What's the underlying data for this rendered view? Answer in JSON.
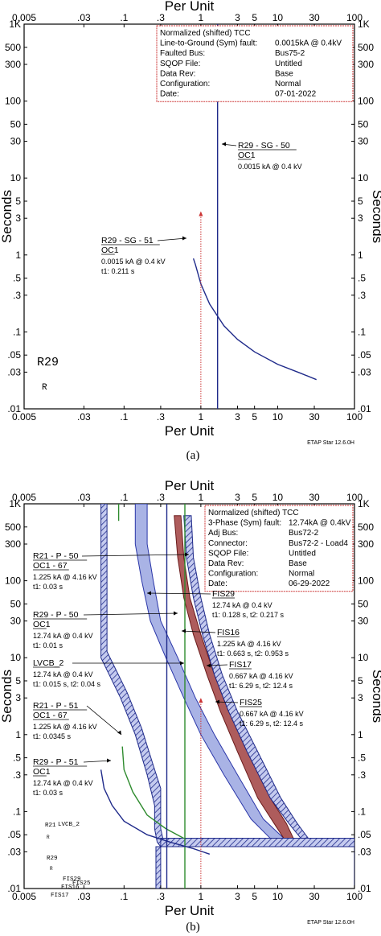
{
  "figure": {
    "panel_a_caption": "(a)",
    "panel_b_caption": "(b)"
  },
  "chart_data": [
    {
      "type": "line",
      "x_scale": "log",
      "y_scale": "log",
      "xlim": [
        0.005,
        100
      ],
      "ylim": [
        0.01,
        1000
      ],
      "xlabel": "Per Unit",
      "ylabel": "Seconds",
      "x_ticks": [
        "0.005",
        ".03",
        ".1",
        ".3",
        "1",
        "3",
        "5",
        "10",
        "30",
        "100"
      ],
      "x_tick_values": [
        0.005,
        0.03,
        0.1,
        0.3,
        1,
        3,
        5,
        10,
        30,
        100
      ],
      "y_ticks": [
        "1K",
        "500",
        "300",
        "100",
        "50",
        "30",
        "10",
        "5",
        "3",
        "1",
        ".5",
        ".3",
        ".1",
        ".05",
        ".03",
        ".01"
      ],
      "y_tick_values": [
        1000,
        500,
        300,
        100,
        50,
        30,
        10,
        5,
        3,
        1,
        0.5,
        0.3,
        0.1,
        0.05,
        0.03,
        0.01
      ],
      "watermark": "ETAP Star 12.6.0H",
      "info_box": [
        [
          "Normalized (shifted) TCC",
          ""
        ],
        [
          "Line-to-Ground (Sym)  fault:",
          "0.0015kA @ 0.4kV"
        ],
        [
          "Faulted  Bus:",
          "Bus75-2"
        ],
        [
          "SQOP  File:",
          "Untitled"
        ],
        [
          "Data  Rev:",
          "Base"
        ],
        [
          "Configuration:",
          "Normal"
        ],
        [
          "Date:",
          "07-01-2022"
        ]
      ],
      "series": [
        {
          "color": "#1f2a8a",
          "points": [
            [
              0.8,
              0.9
            ],
            [
              0.85,
              0.75
            ],
            [
              1.0,
              0.42
            ],
            [
              1.3,
              0.23
            ],
            [
              2,
              0.12
            ],
            [
              3,
              0.08
            ],
            [
              5,
              0.055
            ],
            [
              10,
              0.038
            ],
            [
              20,
              0.029
            ],
            [
              32,
              0.024
            ]
          ]
        },
        {
          "color": "#1f2a8a",
          "points": [
            [
              1.65,
              0.01
            ],
            [
              1.65,
              1000
            ]
          ]
        }
      ],
      "markers": [
        {
          "x": 1.0,
          "y_from": 0.01,
          "y_to": 3.7,
          "color": "#cc3333",
          "style": "dotted-arrow"
        }
      ],
      "annotations": [
        {
          "title": "R29 - SG - 50",
          "sub": "OC1",
          "lines": [
            "0.0015 kA @ 0.4 kV"
          ]
        },
        {
          "title": "R29 - SG - 51",
          "sub": "OC1",
          "lines": [
            "0.0015 kA @ 0.4 kV",
            "t1: 0.211 s"
          ]
        }
      ],
      "device_labels": [
        {
          "text": "R29",
          "color": "#b3662b"
        },
        {
          "text": "R",
          "color": "#b3662b"
        }
      ]
    },
    {
      "type": "line",
      "x_scale": "log",
      "y_scale": "log",
      "xlim": [
        0.005,
        100
      ],
      "ylim": [
        0.01,
        1000
      ],
      "xlabel": "Per Unit",
      "ylabel": "Seconds",
      "x_ticks": [
        "0.005",
        ".03",
        ".1",
        ".3",
        "1",
        "3",
        "5",
        "10",
        "30",
        "100"
      ],
      "x_tick_values": [
        0.005,
        0.03,
        0.1,
        0.3,
        1,
        3,
        5,
        10,
        30,
        100
      ],
      "y_ticks": [
        "1K",
        "500",
        "300",
        "100",
        "50",
        "30",
        "10",
        "5",
        "3",
        "1",
        ".5",
        ".3",
        ".1",
        ".05",
        ".03",
        ".01"
      ],
      "y_tick_values": [
        1000,
        500,
        300,
        100,
        50,
        30,
        10,
        5,
        3,
        1,
        0.5,
        0.3,
        0.1,
        0.05,
        0.03,
        0.01
      ],
      "watermark": "ETAP Star 12.6.0H",
      "info_box": [
        [
          "Normalized (shifted) TCC",
          ""
        ],
        [
          "3-Phase (Sym)  fault:",
          "12.74kA @ 0.4kV"
        ],
        [
          "Adj  Bus:",
          "Bus72-2"
        ],
        [
          "Connector:",
          "Bus72-2 - Load4"
        ],
        [
          "SQOP  File:",
          "Untitled"
        ],
        [
          "Data  Rev:",
          "Base"
        ],
        [
          "Configuration:",
          "Normal"
        ],
        [
          "Date:",
          "06-29-2022"
        ]
      ],
      "bands": [
        {
          "name": "FIS29",
          "fill": "#9aa6e0",
          "stroke": "#2a36a8",
          "left": [
            [
              0.14,
              1000
            ],
            [
              0.14,
              300
            ],
            [
              0.17,
              100
            ],
            [
              0.22,
              30
            ],
            [
              0.35,
              10
            ],
            [
              0.6,
              3
            ],
            [
              1.0,
              1
            ],
            [
              2.0,
              0.3
            ],
            [
              4.5,
              0.08
            ],
            [
              8,
              0.045
            ]
          ],
          "right": [
            [
              0.2,
              1000
            ],
            [
              0.2,
              300
            ],
            [
              0.24,
              100
            ],
            [
              0.3,
              30
            ],
            [
              0.5,
              10
            ],
            [
              0.85,
              3
            ],
            [
              1.5,
              1
            ],
            [
              3.0,
              0.3
            ],
            [
              6.5,
              0.08
            ],
            [
              12,
              0.045
            ]
          ]
        },
        {
          "name": "FIS16",
          "fill": "#a04040",
          "stroke": "#6a1a1a",
          "left": [
            [
              0.45,
              700
            ],
            [
              0.5,
              200
            ],
            [
              0.6,
              60
            ],
            [
              0.8,
              20
            ],
            [
              1.2,
              6
            ],
            [
              1.8,
              2
            ],
            [
              3,
              0.6
            ],
            [
              5.5,
              0.15
            ],
            [
              9,
              0.07
            ],
            [
              12,
              0.045
            ]
          ],
          "right": [
            [
              0.55,
              700
            ],
            [
              0.6,
              200
            ],
            [
              0.72,
              60
            ],
            [
              1.0,
              20
            ],
            [
              1.5,
              6
            ],
            [
              2.3,
              2
            ],
            [
              4,
              0.6
            ],
            [
              8,
              0.15
            ],
            [
              13,
              0.07
            ],
            [
              16,
              0.045
            ]
          ]
        },
        {
          "name": "FIS25",
          "fill": "#8a94d8",
          "stroke": "#1f2a8a",
          "hatch": true,
          "left": [
            [
              0.6,
              700
            ],
            [
              0.65,
              200
            ],
            [
              0.8,
              60
            ],
            [
              1.05,
              20
            ],
            [
              1.5,
              6
            ],
            [
              2.3,
              2
            ],
            [
              4,
              0.6
            ],
            [
              8,
              0.15
            ],
            [
              14,
              0.07
            ],
            [
              20,
              0.045
            ]
          ],
          "right": [
            [
              0.75,
              700
            ],
            [
              0.8,
              200
            ],
            [
              1.0,
              60
            ],
            [
              1.3,
              20
            ],
            [
              1.9,
              6
            ],
            [
              3,
              2
            ],
            [
              5.5,
              0.6
            ],
            [
              11,
              0.15
            ],
            [
              18,
              0.07
            ],
            [
              25,
              0.045
            ]
          ]
        },
        {
          "name": "LVCB_2",
          "fill": "#8a94d8",
          "stroke": "#1f2a8a",
          "hatch": true,
          "left": [
            [
              0.05,
              1000
            ],
            [
              0.05,
              10
            ],
            [
              0.09,
              3
            ],
            [
              0.14,
              1
            ],
            [
              0.2,
              0.3
            ],
            [
              0.25,
              0.12
            ],
            [
              0.25,
              0.06
            ],
            [
              0.27,
              0.04
            ],
            [
              0.3,
              0.035
            ],
            [
              100,
              0.035
            ]
          ],
          "right": [
            [
              0.06,
              1000
            ],
            [
              0.06,
              12
            ],
            [
              0.11,
              3.5
            ],
            [
              0.17,
              1.2
            ],
            [
              0.24,
              0.4
            ],
            [
              0.3,
              0.2
            ],
            [
              0.3,
              0.06
            ],
            [
              0.32,
              0.045
            ],
            [
              0.36,
              0.04
            ],
            [
              100,
              0.04
            ]
          ]
        },
        {
          "name": "LVCB_2 short-time",
          "fill": "#8a94d8",
          "stroke": "#1f2a8a",
          "hatch": true,
          "left": [
            [
              0.26,
              0.01
            ],
            [
              0.26,
              0.035
            ],
            [
              100,
              0.035
            ],
            [
              100,
              0.01
            ]
          ],
          "right": [
            [
              0.3,
              0.01
            ],
            [
              0.3,
              0.045
            ],
            [
              100,
              0.045
            ],
            [
              100,
              0.01
            ]
          ]
        }
      ],
      "series": [
        {
          "color": "#2e8b2e",
          "points": [
            [
              0.095,
              0.7
            ],
            [
              0.1,
              0.35
            ],
            [
              0.13,
              0.18
            ],
            [
              0.2,
              0.09
            ],
            [
              0.35,
              0.06
            ],
            [
              0.6,
              0.045
            ]
          ]
        },
        {
          "color": "#2e8b2e",
          "points": [
            [
              0.085,
              1000
            ],
            [
              0.085,
              600
            ]
          ]
        },
        {
          "color": "#2e8b2e",
          "points": [
            [
              0.62,
              0.01
            ],
            [
              0.62,
              1000
            ]
          ]
        },
        {
          "color": "#1f2a8a",
          "points": [
            [
              0.05,
              0.35
            ],
            [
              0.055,
              0.2
            ],
            [
              0.07,
              0.12
            ],
            [
              0.1,
              0.075
            ],
            [
              0.2,
              0.05
            ],
            [
              0.4,
              0.04
            ],
            [
              0.8,
              0.033
            ],
            [
              1.3,
              0.028
            ]
          ]
        },
        {
          "color": "#1f2a8a",
          "points": [
            [
              0.36,
              0.01
            ],
            [
              0.36,
              1000
            ]
          ]
        }
      ],
      "markers": [
        {
          "x": 1.0,
          "y_from": 0.01,
          "y_to": 3.0,
          "color": "#cc3333",
          "style": "dotted-arrow"
        }
      ],
      "annotations": [
        {
          "title": "R21 - P - 50",
          "sub": "OC1 - 67",
          "lines": [
            "1.225 kA @ 4.16 kV",
            "t1: 0.03 s"
          ]
        },
        {
          "title": "FIS29",
          "sub": "",
          "lines": [
            "12.74 kA @ 0.4 kV",
            "t1: 0.128 s, t2: 0.217 s"
          ]
        },
        {
          "title": "R29 - P - 50",
          "sub": "OC1",
          "lines": [
            "12.74 kA @ 0.4 kV",
            "t1: 0.01 s"
          ]
        },
        {
          "title": "FIS16",
          "sub": "",
          "lines": [
            "1.225 kA @ 4.16 kV",
            "t1: 0.663 s, t2: 0.953 s"
          ]
        },
        {
          "title": "LVCB_2",
          "sub": "",
          "lines": [
            "12.74 kA @ 0.4 kV",
            "t1: 0.015 s, t2: 0.04 s"
          ]
        },
        {
          "title": "FIS17",
          "sub": "",
          "lines": [
            "0.667 kA @ 4.16 kV",
            "t1: 6.29 s, t2: 12.4 s"
          ]
        },
        {
          "title": "R21 - P - 51",
          "sub": "OC1 - 67",
          "lines": [
            "1.225 kA @ 4.16 kV",
            "t1: 0.0345 s"
          ]
        },
        {
          "title": "FIS25",
          "sub": "",
          "lines": [
            "0.667 kA @ 4.16 kV",
            "t1: 6.29 s, t2: 12.4 s"
          ]
        },
        {
          "title": "R29 - P - 51",
          "sub": "OC1",
          "lines": [
            "12.74 kA @ 0.4 kV",
            "t1: 0.03 s"
          ]
        }
      ],
      "device_labels": [
        {
          "text": "R21",
          "color": "#b3662b"
        },
        {
          "text": "LVCB_2",
          "color": "#3b4bc8"
        },
        {
          "text": "R",
          "color": "#b3662b"
        },
        {
          "text": "R29",
          "color": "#b3662b"
        },
        {
          "text": "R",
          "color": "#b3662b"
        },
        {
          "text": "FIS29",
          "color": "#3b4bc8"
        },
        {
          "text": "FIS25",
          "color": "#cc33cc"
        },
        {
          "text": "FIS16",
          "color": "#cc33cc"
        },
        {
          "text": "FIS17",
          "color": "#cc33cc"
        }
      ]
    }
  ]
}
